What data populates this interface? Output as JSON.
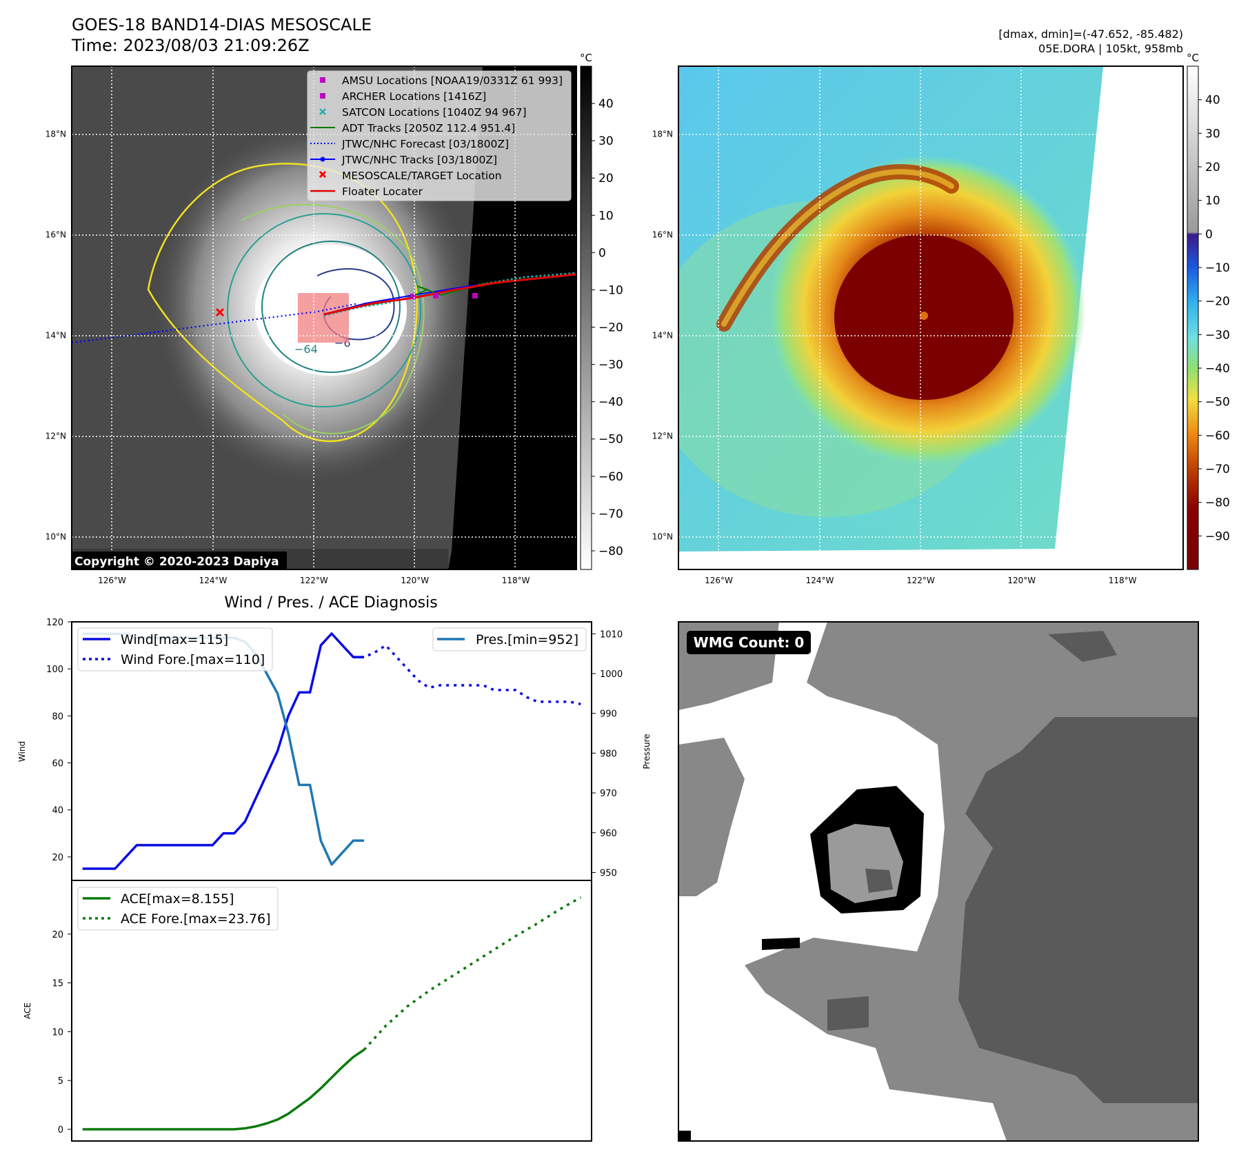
{
  "header": {
    "title_line1": "GOES-18 BAND14-DIAS MESOSCALE",
    "title_line2": "Time: 2023/08/03 21:09:26Z",
    "dmax_dmin": "[dmax, dmin]=(-47.652, -85.482)",
    "storm_info": "05E.DORA | 105kt, 958mb",
    "copyright": "Copyright © 2020-2023 Dapiya"
  },
  "colors": {
    "wind": "#0a0ae6",
    "pressure": "#1f77b4",
    "ace": "#0a7a0a",
    "amsu": "#c000c0",
    "archer": "#c000c0",
    "satcon": "#20b0b0",
    "adt": "#0a7a0a",
    "forecast": "#0000ff",
    "tracks": "#0000ff",
    "target": "#ff0000",
    "floater": "#e00000"
  },
  "map_axes": {
    "lon_ticks": [
      "126°W",
      "124°W",
      "122°W",
      "120°W",
      "118°W"
    ],
    "lat_ticks": [
      "18°N",
      "16°N",
      "14°N",
      "12°N",
      "10°N"
    ],
    "lon_values": [
      -126,
      -124,
      -122,
      -120,
      -118
    ],
    "lat_values": [
      18,
      16,
      14,
      12,
      10
    ],
    "lon_range": [
      -126.8,
      -116.8
    ],
    "lat_range": [
      9.35,
      19.35
    ]
  },
  "colorbar_gray": {
    "unit": "°C",
    "ticks": [
      "40",
      "30",
      "20",
      "10",
      "0",
      "−10",
      "−20",
      "−30",
      "−40",
      "−50",
      "−60",
      "−70",
      "−80"
    ],
    "values": [
      40,
      30,
      20,
      10,
      0,
      -10,
      -20,
      -30,
      -40,
      -50,
      -60,
      -70,
      -80
    ],
    "range": [
      -85,
      50
    ]
  },
  "colorbar_color": {
    "unit": "°C",
    "ticks": [
      "40",
      "30",
      "20",
      "10",
      "0",
      "−10",
      "−20",
      "−30",
      "−40",
      "−50",
      "−60",
      "−70",
      "−80",
      "−90"
    ],
    "values": [
      40,
      30,
      20,
      10,
      0,
      -10,
      -20,
      -30,
      -40,
      -50,
      -60,
      -70,
      -80,
      -90
    ],
    "range": [
      -100,
      50
    ]
  },
  "legend_map": [
    {
      "label": "AMSU Locations [NOAA19/0331Z 61 993]",
      "marker": "square",
      "color": "#c000c0"
    },
    {
      "label": "ARCHER Locations [1416Z]",
      "marker": "square",
      "color": "#c000c0"
    },
    {
      "label": "SATCON Locations [1040Z 94 967]",
      "marker": "x",
      "color": "#20b0b0"
    },
    {
      "label": "ADT Tracks [2050Z 112.4 951.4]",
      "marker": "line",
      "color": "#0a7a0a"
    },
    {
      "label": "JTWC/NHC Forecast [03/1800Z]",
      "marker": "dotted",
      "color": "#0000ff"
    },
    {
      "label": "JTWC/NHC Tracks [03/1800Z]",
      "marker": "line-dot",
      "color": "#0000ff"
    },
    {
      "label": "MESOSCALE/TARGET Location",
      "marker": "x",
      "color": "#ff0000"
    },
    {
      "label": "Floater Locater",
      "marker": "line",
      "color": "#e00000"
    }
  ],
  "contour_labels": [
    "−64",
    "−6"
  ],
  "diagnosis": {
    "title": "Wind / Pres. / ACE Diagnosis",
    "wind_ylabel": "Wind",
    "pressure_ylabel": "Pressure",
    "ace_ylabel": "ACE",
    "legend_wind": "Wind[max=115]",
    "legend_wind_fore": "Wind Fore.[max=110]",
    "legend_pres": "Pres.[min=952]",
    "legend_ace": "ACE[max=8.155]",
    "legend_ace_fore": "ACE Fore.[max=23.76]"
  },
  "wmg": {
    "badge": "WMG Count: 0"
  },
  "chart_data": [
    {
      "type": "line",
      "name_panel": "wind-pressure",
      "x": [
        0,
        1,
        2,
        3,
        4,
        5,
        6,
        7,
        8,
        9,
        10,
        11,
        12,
        13,
        14,
        15,
        16,
        17,
        18,
        19,
        20,
        21,
        22,
        23,
        24,
        25,
        26,
        27,
        28,
        29,
        30,
        31,
        32,
        33,
        34,
        35,
        36,
        37,
        38,
        39,
        40,
        41,
        42,
        43,
        44,
        45,
        46
      ],
      "ylim_wind": [
        10,
        120
      ],
      "ylim_pressure": [
        948,
        1013
      ],
      "series": [
        {
          "name": "Wind[max=115]",
          "axis": "wind",
          "x": [
            0,
            1,
            2,
            3,
            4,
            5,
            6,
            7,
            8,
            9,
            10,
            11,
            12,
            13,
            14,
            15,
            16,
            17,
            18,
            19,
            20,
            21,
            22,
            23,
            24,
            25,
            26
          ],
          "values": [
            15,
            15,
            15,
            15,
            20,
            25,
            25,
            25,
            25,
            25,
            25,
            25,
            25,
            30,
            30,
            35,
            45,
            55,
            65,
            80,
            90,
            90,
            110,
            115,
            110,
            105,
            105
          ]
        },
        {
          "name": "Wind Fore.[max=110]",
          "axis": "wind",
          "x": [
            25,
            26,
            27,
            28,
            29,
            30,
            31,
            32,
            33,
            34,
            35,
            36,
            37,
            38,
            39,
            40,
            41,
            42,
            43,
            44,
            45,
            46
          ],
          "values": [
            105,
            105,
            107,
            110,
            105,
            100,
            95,
            92,
            93,
            93,
            93,
            93,
            93,
            91,
            91,
            91,
            88,
            86,
            86,
            86,
            86,
            85
          ]
        },
        {
          "name": "Pres.[min=952]",
          "axis": "pressure",
          "x": [
            0,
            1,
            2,
            3,
            4,
            5,
            6,
            7,
            8,
            9,
            10,
            11,
            12,
            13,
            14,
            15,
            16,
            17,
            18,
            19,
            20,
            21,
            22,
            23,
            24,
            25,
            26
          ],
          "values": [
            1010,
            1010,
            1010,
            1010,
            1010,
            1009,
            1009,
            1009,
            1009,
            1009,
            1009,
            1009,
            1009,
            1009,
            1009,
            1008,
            1005,
            1000,
            995,
            985,
            972,
            972,
            958,
            952,
            955,
            958,
            958
          ]
        }
      ],
      "ytick_wind": [
        20,
        40,
        60,
        80,
        100,
        120
      ],
      "ytick_pressure": [
        950,
        960,
        970,
        980,
        990,
        1000,
        1010
      ]
    },
    {
      "type": "line",
      "name_panel": "ace",
      "ylim": [
        -1.2,
        25.5
      ],
      "series": [
        {
          "name": "ACE[max=8.155]",
          "x": [
            0,
            1,
            2,
            3,
            4,
            5,
            6,
            7,
            8,
            9,
            10,
            11,
            12,
            13,
            14,
            15,
            16,
            17,
            18,
            19,
            20,
            21,
            22,
            23,
            24,
            25,
            26
          ],
          "values": [
            0,
            0,
            0,
            0,
            0,
            0,
            0,
            0,
            0,
            0,
            0,
            0,
            0,
            0,
            0,
            0.1,
            0.3,
            0.6,
            1.0,
            1.6,
            2.4,
            3.2,
            4.2,
            5.3,
            6.4,
            7.4,
            8.155
          ]
        },
        {
          "name": "ACE Fore.[max=23.76]",
          "x": [
            26,
            28,
            30,
            32,
            34,
            36,
            38,
            40,
            42,
            44,
            46
          ],
          "values": [
            8.155,
            10.6,
            12.6,
            14.2,
            15.6,
            17.0,
            18.4,
            19.8,
            21.1,
            22.5,
            23.76
          ]
        }
      ],
      "yticks": [
        0,
        5,
        10,
        15,
        20
      ]
    }
  ]
}
